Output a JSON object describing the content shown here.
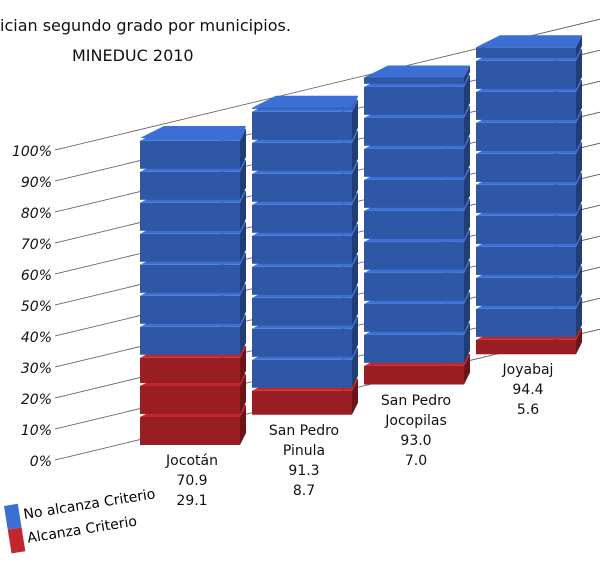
{
  "chart_data": {
    "type": "bar",
    "stacked": true,
    "title": "ician segundo grado por municipios.",
    "subtitle": "MINEDUC 2010",
    "categories": [
      "Jocotán",
      "San Pedro Pinula",
      "San Pedro Jocopilas",
      "Joyabaj"
    ],
    "series": [
      {
        "name": "No alcanza Criterio",
        "color": "#3b6fd4",
        "values": [
          70.9,
          91.3,
          93.0,
          94.4
        ],
        "value_labels": [
          "70.9",
          "91.3",
          "93.0",
          "94.4"
        ]
      },
      {
        "name": "Alcanza Criterio",
        "color": "#c4262e",
        "values": [
          29.1,
          8.7,
          7.0,
          5.6
        ],
        "value_labels": [
          "29.1",
          "8.7",
          "7.0",
          "5.6"
        ]
      }
    ],
    "ylim": [
      0,
      100
    ],
    "yticks": [
      {
        "value": 0,
        "label": "0%"
      },
      {
        "value": 10,
        "label": "10%"
      },
      {
        "value": 20,
        "label": "20%"
      },
      {
        "value": 30,
        "label": "30%"
      },
      {
        "value": 40,
        "label": "40%"
      },
      {
        "value": 50,
        "label": "50%"
      },
      {
        "value": 60,
        "label": "60%"
      },
      {
        "value": 70,
        "label": "70%"
      },
      {
        "value": 80,
        "label": "80%"
      },
      {
        "value": 90,
        "label": "90%"
      },
      {
        "value": 100,
        "label": "100%"
      }
    ],
    "grid": true
  }
}
